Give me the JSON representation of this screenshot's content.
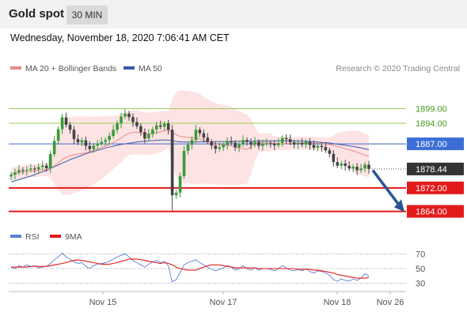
{
  "header": {
    "title": "Gold spot",
    "timeframe": "30 MIN"
  },
  "datetime": "Wednesday, November 18, 2020 7:06:41 AM CET",
  "credit": "Research © 2020 Trading Central",
  "colors": {
    "ma20": "#e88a8a",
    "ma50": "#3a5aa8",
    "bollinger_fill": "#fde3e3",
    "resistance": "#9acd5a",
    "pivot": "#3b6fd6",
    "support": "#e31a1a",
    "candle_up": "#3a9a3a",
    "candle_down": "#444444",
    "rsi": "#5b7fd6",
    "rsi_ma": "#e31a1a",
    "arrow": "#2a5590"
  },
  "chart_data": [
    {
      "type": "candlestick",
      "legend": [
        "MA 20 + Bollinger Bands",
        "MA 50"
      ],
      "ylim": [
        1862,
        1908
      ],
      "x_ticks": [
        "Nov 15",
        "Nov 17",
        "Nov 18",
        "Nov 26"
      ],
      "levels": [
        {
          "label": "1899.00",
          "value": 1899.0,
          "kind": "resistance"
        },
        {
          "label": "1894.00",
          "value": 1894.0,
          "kind": "resistance"
        },
        {
          "label": "1887.00",
          "value": 1887.0,
          "kind": "pivot"
        },
        {
          "label": "1878.44",
          "value": 1878.44,
          "kind": "last"
        },
        {
          "label": "1872.00",
          "value": 1872.0,
          "kind": "support"
        },
        {
          "label": "1864.00",
          "value": 1864.0,
          "kind": "support"
        }
      ],
      "close": [
        1876.5,
        1877.3,
        1878.1,
        1877.9,
        1878.2,
        1878.6,
        1878.3,
        1879.1,
        1879.6,
        1878.7,
        1883.5,
        1888.0,
        1892.0,
        1896.0,
        1893.5,
        1891.8,
        1888.6,
        1887.5,
        1888.2,
        1886.3,
        1885.2,
        1886.4,
        1887.1,
        1887.7,
        1888.3,
        1889.7,
        1891.8,
        1894.0,
        1896.3,
        1897.3,
        1896.1,
        1894.4,
        1893.0,
        1891.0,
        1888.8,
        1890.3,
        1891.9,
        1893.3,
        1892.8,
        1893.9,
        1891.8,
        1869.5,
        1870.4,
        1876.0,
        1884.6,
        1886.7,
        1888.3,
        1891.8,
        1890.6,
        1889.1,
        1887.7,
        1886.4,
        1885.3,
        1885.8,
        1886.6,
        1887.9,
        1887.4,
        1885.8,
        1886.8,
        1888.3,
        1887.6,
        1886.7,
        1887.7,
        1886.3,
        1887.1,
        1887.2,
        1887.0,
        1886.5,
        1887.3,
        1889.0,
        1888.6,
        1887.5,
        1886.8,
        1887.3,
        1886.8,
        1887.7,
        1886.6,
        1885.7,
        1886.3,
        1885.9,
        1884.8,
        1883.6,
        1880.8,
        1879.6,
        1880.3,
        1879.5,
        1878.6,
        1879.2,
        1878.0,
        1878.6,
        1879.9,
        1878.44
      ],
      "ma50": [
        1874.0,
        1874.4,
        1874.8,
        1875.2,
        1875.6,
        1876.0,
        1876.5,
        1877.0,
        1877.5,
        1878.0,
        1878.6,
        1879.2,
        1879.8,
        1880.4,
        1881.0,
        1881.6,
        1882.1,
        1882.6,
        1883.1,
        1883.6,
        1884.0,
        1884.4,
        1884.8,
        1885.2,
        1885.6,
        1885.9,
        1886.2,
        1886.5,
        1886.8,
        1887.0,
        1887.2,
        1887.4,
        1887.6,
        1887.8,
        1887.9,
        1888.0,
        1888.1,
        1888.2,
        1888.3,
        1888.3,
        1888.3,
        1888.0,
        1887.8,
        1887.7,
        1887.6,
        1887.6,
        1887.6,
        1887.6,
        1887.7,
        1887.7,
        1887.7,
        1887.7,
        1887.8,
        1887.8,
        1887.8,
        1887.8,
        1887.8,
        1887.8,
        1887.9,
        1887.9,
        1887.9,
        1887.9,
        1887.9,
        1888.0,
        1888.0,
        1888.0,
        1888.0,
        1888.0,
        1888.0,
        1888.0,
        1888.0,
        1888.0,
        1888.0,
        1887.9,
        1887.9,
        1887.9,
        1887.8,
        1887.7,
        1887.6,
        1887.5,
        1887.4,
        1887.3,
        1887.1,
        1886.9,
        1886.7,
        1886.5,
        1886.3,
        1886.1,
        1885.9,
        1885.6,
        1885.3,
        1885.0
      ]
    },
    {
      "type": "line",
      "legend": [
        "RSI",
        "9MA"
      ],
      "ylim": [
        20,
        80
      ],
      "y_ticks": [
        "70",
        "50",
        "30"
      ],
      "rsi": [
        52,
        50,
        54,
        52,
        55,
        53,
        54,
        51,
        52,
        53,
        57,
        62,
        66,
        71,
        66,
        63,
        59,
        57,
        58,
        53,
        50,
        54,
        56,
        57,
        58,
        60,
        63,
        66,
        68,
        70,
        66,
        61,
        58,
        55,
        52,
        56,
        59,
        61,
        58,
        60,
        54,
        32,
        35,
        45,
        55,
        58,
        60,
        62,
        58,
        55,
        52,
        49,
        47,
        49,
        51,
        54,
        52,
        48,
        50,
        54,
        50,
        48,
        51,
        48,
        50,
        50,
        49,
        47,
        50,
        54,
        51,
        48,
        47,
        49,
        47,
        50,
        46,
        44,
        47,
        46,
        44,
        41,
        35,
        33,
        36,
        34,
        33,
        36,
        34,
        37,
        43,
        40
      ],
      "rsi_ma": [
        52,
        52,
        52,
        52,
        52,
        53,
        53,
        53,
        53,
        53,
        54,
        55,
        56,
        57,
        58,
        60,
        61,
        62,
        61,
        60,
        59,
        58,
        57,
        56,
        56,
        56,
        57,
        58,
        60,
        61,
        63,
        63,
        63,
        62,
        61,
        60,
        59,
        58,
        57,
        58,
        57,
        55,
        52,
        50,
        49,
        48,
        48,
        48,
        50,
        52,
        54,
        55,
        55,
        55,
        54,
        53,
        52,
        51,
        51,
        51,
        51,
        51,
        51,
        50,
        50,
        50,
        50,
        50,
        50,
        50,
        50,
        50,
        50,
        49,
        49,
        49,
        49,
        48,
        48,
        47,
        46,
        45,
        44,
        42,
        41,
        40,
        39,
        38,
        37,
        37,
        37,
        38
      ]
    }
  ]
}
